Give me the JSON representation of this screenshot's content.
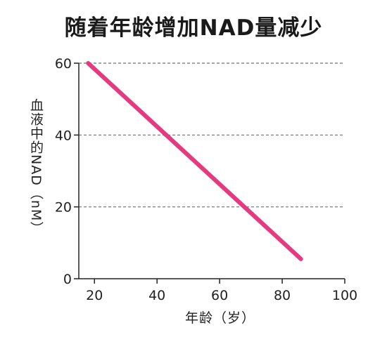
{
  "chart_data": {
    "type": "line",
    "title": "随着年龄增加NAD量减少",
    "xlabel": "年龄（岁）",
    "ylabel": "血液中的NAD（nM）",
    "x": [
      18,
      86
    ],
    "series": [
      {
        "values": [
          60,
          5.5
        ],
        "color": "#e6397f"
      }
    ],
    "xlim": [
      15,
      100
    ],
    "ylim": [
      0,
      60
    ],
    "xticks": [
      "20",
      "40",
      "60",
      "80",
      "100"
    ],
    "yticks": [
      "0",
      "20",
      "40",
      "60"
    ],
    "grid": "horizontal dashed at 20, 40, 60",
    "legend": "none"
  }
}
